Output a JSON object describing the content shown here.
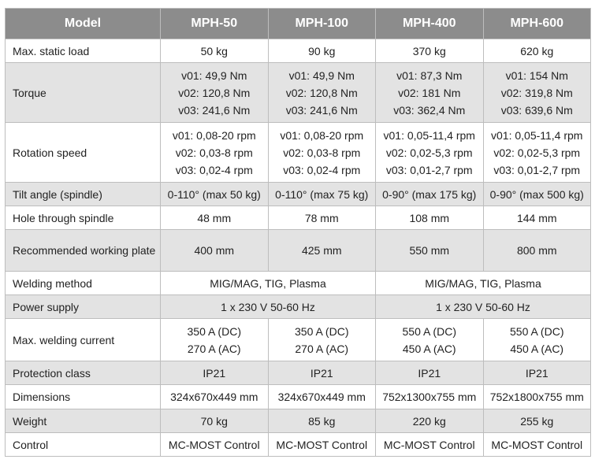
{
  "header": {
    "model": "Model",
    "mph50": "MPH-50",
    "mph100": "MPH-100",
    "mph400": "MPH-400",
    "mph600": "MPH-600"
  },
  "rows": {
    "static_load": {
      "label": "Max. static load",
      "v": [
        "50 kg",
        "90 kg",
        "370 kg",
        "620 kg"
      ]
    },
    "torque": {
      "label": "Torque",
      "v": [
        [
          "v01: 49,9 Nm",
          "v02: 120,8 Nm",
          "v03: 241,6 Nm"
        ],
        [
          "v01: 49,9 Nm",
          "v02: 120,8 Nm",
          "v03: 241,6 Nm"
        ],
        [
          "v01: 87,3 Nm",
          "v02: 181 Nm",
          "v03: 362,4 Nm"
        ],
        [
          "v01: 154 Nm",
          "v02: 319,8 Nm",
          "v03: 639,6 Nm"
        ]
      ]
    },
    "rotation": {
      "label": "Rotation speed",
      "v": [
        [
          "v01: 0,08-20 rpm",
          "v02: 0,03-8 rpm",
          "v03: 0,02-4 rpm"
        ],
        [
          "v01: 0,08-20 rpm",
          "v02: 0,03-8 rpm",
          "v03: 0,02-4 rpm"
        ],
        [
          "v01: 0,05-11,4 rpm",
          "v02: 0,02-5,3 rpm",
          "v03: 0,01-2,7 rpm"
        ],
        [
          "v01: 0,05-11,4 rpm",
          "v02: 0,02-5,3 rpm",
          "v03: 0,01-2,7 rpm"
        ]
      ]
    },
    "tilt": {
      "label": "Tilt angle (spindle)",
      "v": [
        "0-110° (max 50 kg)",
        "0-110° (max 75 kg)",
        "0-90° (max 175 kg)",
        "0-90° (max 500 kg)"
      ]
    },
    "hole": {
      "label": "Hole through spindle",
      "v": [
        "48 mm",
        "78 mm",
        "108 mm",
        "144 mm"
      ]
    },
    "plate": {
      "label": "Recommended working plate",
      "v": [
        "400 mm",
        "425 mm",
        "550 mm",
        "800 mm"
      ]
    },
    "welding": {
      "label": "Welding method",
      "v": [
        "MIG/MAG, TIG, Plasma",
        "MIG/MAG, TIG, Plasma"
      ]
    },
    "power": {
      "label": "Power supply",
      "v": [
        "1 x 230 V 50-60 Hz",
        "1 x 230 V 50-60 Hz"
      ]
    },
    "current": {
      "label": "Max. welding current",
      "v": [
        [
          "350 A (DC)",
          "270 A (AC)"
        ],
        [
          "350 A (DC)",
          "270 A (AC)"
        ],
        [
          "550 A (DC)",
          "450 A (AC)"
        ],
        [
          "550 A (DC)",
          "450 A (AC)"
        ]
      ]
    },
    "protection": {
      "label": "Protection class",
      "v": [
        "IP21",
        "IP21",
        "IP21",
        "IP21"
      ]
    },
    "dimensions": {
      "label": "Dimensions",
      "v": [
        "324x670x449 mm",
        "324x670x449 mm",
        "752x1300x755 mm",
        "752x1800x755 mm"
      ]
    },
    "weight": {
      "label": "Weight",
      "v": [
        "70 kg",
        "85 kg",
        "220 kg",
        "255 kg"
      ]
    },
    "control": {
      "label": "Control",
      "v": [
        "MC-MOST Control",
        "MC-MOST Control",
        "MC-MOST Control",
        "MC-MOST Control"
      ]
    }
  }
}
